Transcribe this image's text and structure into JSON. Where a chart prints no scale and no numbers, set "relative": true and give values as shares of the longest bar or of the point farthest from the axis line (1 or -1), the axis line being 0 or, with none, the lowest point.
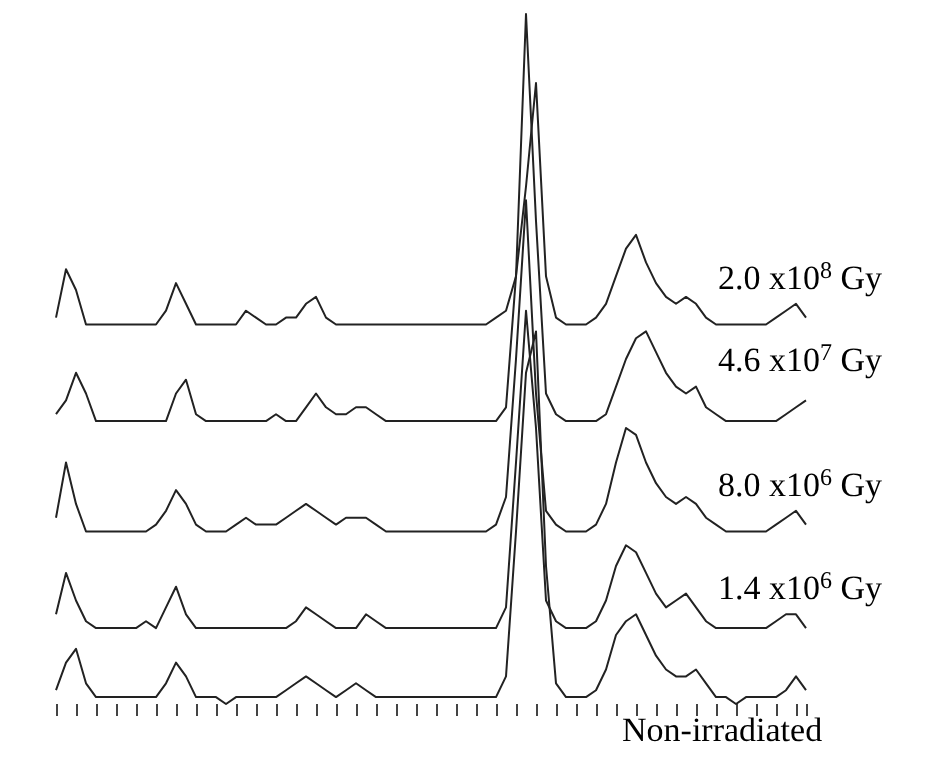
{
  "chart_data": {
    "type": "line",
    "relative": true,
    "legend": false,
    "grid": false,
    "categories": [
      null,
      null,
      null,
      null,
      null,
      null,
      null,
      null,
      null,
      null,
      null,
      null,
      null,
      null,
      null,
      null,
      null,
      null,
      null,
      null,
      null,
      null,
      null,
      null,
      null,
      null,
      null,
      null,
      null,
      null,
      null,
      null,
      null,
      null,
      null,
      null,
      null,
      null,
      null,
      null,
      null,
      null,
      null,
      null,
      null,
      null,
      null,
      null,
      null,
      null,
      null,
      null,
      null,
      null,
      null,
      null,
      null,
      null,
      null,
      null,
      null,
      null,
      null,
      null,
      null,
      null,
      null,
      null,
      null,
      null,
      null,
      null,
      null,
      null,
      null,
      null
    ],
    "series": [
      {
        "name": "2.0 x10$^{8}$ Gy",
        "color": "#222222",
        "values": [
          0.56,
          0.63,
          0.6,
          0.55,
          0.55,
          0.55,
          0.55,
          0.55,
          0.55,
          0.55,
          0.55,
          0.57,
          0.61,
          0.58,
          0.55,
          0.55,
          0.55,
          0.55,
          0.55,
          0.57,
          0.56,
          0.55,
          0.55,
          0.56,
          0.56,
          0.58,
          0.59,
          0.56,
          0.55,
          0.55,
          0.55,
          0.55,
          0.55,
          0.55,
          0.55,
          0.55,
          0.55,
          0.55,
          0.55,
          0.55,
          0.55,
          0.55,
          0.55,
          0.55,
          0.56,
          0.57,
          0.62,
          0.75,
          0.9,
          0.62,
          0.56,
          0.55,
          0.55,
          0.55,
          0.56,
          0.58,
          0.62,
          0.66,
          0.68,
          0.64,
          0.61,
          0.59,
          0.58,
          0.59,
          0.58,
          0.56,
          0.55,
          0.55,
          0.55,
          0.55,
          0.55,
          0.55,
          0.56,
          0.57,
          0.58,
          0.56
        ]
      },
      {
        "name": "4.6 x10$^{7}$ Gy",
        "color": "#222222",
        "values": [
          0.42,
          0.44,
          0.48,
          0.45,
          0.41,
          0.41,
          0.41,
          0.41,
          0.41,
          0.41,
          0.41,
          0.41,
          0.45,
          0.47,
          0.42,
          0.41,
          0.41,
          0.41,
          0.41,
          0.41,
          0.41,
          0.41,
          0.42,
          0.41,
          0.41,
          0.43,
          0.45,
          0.43,
          0.42,
          0.42,
          0.43,
          0.43,
          0.42,
          0.41,
          0.41,
          0.41,
          0.41,
          0.41,
          0.41,
          0.41,
          0.41,
          0.41,
          0.41,
          0.41,
          0.41,
          0.43,
          0.62,
          1.0,
          0.7,
          0.45,
          0.42,
          0.41,
          0.41,
          0.41,
          0.41,
          0.42,
          0.46,
          0.5,
          0.53,
          0.54,
          0.51,
          0.48,
          0.46,
          0.45,
          0.46,
          0.43,
          0.42,
          0.41,
          0.41,
          0.41,
          0.41,
          0.41,
          0.41,
          0.42,
          0.43,
          0.44
        ]
      },
      {
        "name": "8.0 x10$^{6}$ Gy",
        "color": "#222222",
        "values": [
          0.27,
          0.35,
          0.29,
          0.25,
          0.25,
          0.25,
          0.25,
          0.25,
          0.25,
          0.25,
          0.26,
          0.28,
          0.31,
          0.29,
          0.26,
          0.25,
          0.25,
          0.25,
          0.26,
          0.27,
          0.26,
          0.26,
          0.26,
          0.27,
          0.28,
          0.29,
          0.28,
          0.27,
          0.26,
          0.27,
          0.27,
          0.27,
          0.26,
          0.25,
          0.25,
          0.25,
          0.25,
          0.25,
          0.25,
          0.25,
          0.25,
          0.25,
          0.25,
          0.25,
          0.26,
          0.3,
          0.5,
          0.73,
          0.45,
          0.28,
          0.26,
          0.25,
          0.25,
          0.25,
          0.26,
          0.29,
          0.35,
          0.4,
          0.39,
          0.35,
          0.32,
          0.3,
          0.29,
          0.3,
          0.29,
          0.27,
          0.26,
          0.25,
          0.25,
          0.25,
          0.25,
          0.25,
          0.26,
          0.27,
          0.28,
          0.26
        ]
      },
      {
        "name": "1.4 x10$^{6}$ Gy",
        "color": "#222222",
        "values": [
          0.13,
          0.19,
          0.15,
          0.12,
          0.11,
          0.11,
          0.11,
          0.11,
          0.11,
          0.12,
          0.11,
          0.14,
          0.17,
          0.13,
          0.11,
          0.11,
          0.11,
          0.11,
          0.11,
          0.11,
          0.11,
          0.11,
          0.11,
          0.11,
          0.12,
          0.14,
          0.13,
          0.12,
          0.11,
          0.11,
          0.11,
          0.13,
          0.12,
          0.11,
          0.11,
          0.11,
          0.11,
          0.11,
          0.11,
          0.11,
          0.11,
          0.11,
          0.11,
          0.11,
          0.11,
          0.14,
          0.35,
          0.57,
          0.4,
          0.15,
          0.12,
          0.11,
          0.11,
          0.11,
          0.12,
          0.15,
          0.2,
          0.23,
          0.22,
          0.19,
          0.16,
          0.14,
          0.15,
          0.16,
          0.14,
          0.12,
          0.11,
          0.11,
          0.11,
          0.11,
          0.11,
          0.11,
          0.12,
          0.13,
          0.13,
          0.11
        ]
      },
      {
        "name": "Non-irradiated",
        "color": "#222222",
        "values": [
          0.02,
          0.06,
          0.08,
          0.03,
          0.01,
          0.01,
          0.01,
          0.01,
          0.01,
          0.01,
          0.01,
          0.03,
          0.06,
          0.04,
          0.01,
          0.01,
          0.01,
          0.0,
          0.01,
          0.01,
          0.01,
          0.01,
          0.01,
          0.02,
          0.03,
          0.04,
          0.03,
          0.02,
          0.01,
          0.02,
          0.03,
          0.02,
          0.01,
          0.01,
          0.01,
          0.01,
          0.01,
          0.01,
          0.01,
          0.01,
          0.01,
          0.01,
          0.01,
          0.01,
          0.01,
          0.04,
          0.25,
          0.48,
          0.54,
          0.2,
          0.03,
          0.01,
          0.01,
          0.01,
          0.02,
          0.05,
          0.1,
          0.12,
          0.13,
          0.1,
          0.07,
          0.05,
          0.04,
          0.04,
          0.05,
          0.03,
          0.01,
          0.01,
          0.0,
          0.01,
          0.01,
          0.01,
          0.01,
          0.02,
          0.04,
          0.02
        ]
      }
    ]
  }
}
